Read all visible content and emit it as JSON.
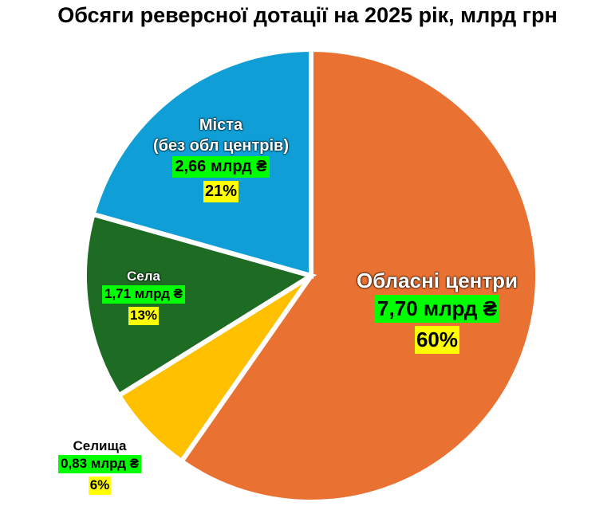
{
  "chart_data": {
    "type": "pie",
    "title": "Обсяги реверсної дотації на 2025 рік, млрд грн",
    "categories": [
      "Обласні центри",
      "Селища",
      "Села",
      "Міста\n(без обл центрів)"
    ],
    "values": [
      7.7,
      0.83,
      1.71,
      2.66
    ],
    "value_labels": [
      "7,70 млрд ₴",
      "0,83 млрд ₴",
      "1,71 млрд ₴",
      "2,66 млрд ₴"
    ],
    "percent_labels": [
      "60%",
      "6%",
      "13%",
      "21%"
    ],
    "colors": [
      "#E97132",
      "#FFC000",
      "#1E6B24",
      "#0F9ED5"
    ]
  }
}
